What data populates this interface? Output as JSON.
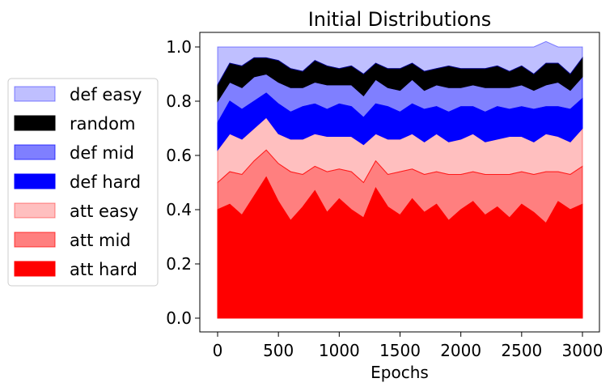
{
  "chart_data": {
    "type": "area",
    "stacked": true,
    "title": "Initial Distributions",
    "xlabel": "Epochs",
    "ylabel": "",
    "xlim": [
      0,
      3000
    ],
    "ylim": [
      0,
      1
    ],
    "xticks": [
      "0",
      "500",
      "1000",
      "1500",
      "2000",
      "2500",
      "3000"
    ],
    "yticks": [
      "0.0",
      "0.2",
      "0.4",
      "0.6",
      "0.8",
      "1.0"
    ],
    "legend_position": "left, outside plot",
    "x": [
      0,
      100,
      200,
      300,
      400,
      500,
      600,
      700,
      800,
      900,
      1000,
      1100,
      1200,
      1300,
      1400,
      1500,
      1600,
      1700,
      1800,
      1900,
      2000,
      2100,
      2200,
      2300,
      2400,
      2500,
      2600,
      2700,
      2800,
      2900,
      3000
    ],
    "series": [
      {
        "name": "att hard",
        "color": "#ff0000",
        "opacity": 1.0,
        "values": [
          0.4,
          0.42,
          0.38,
          0.45,
          0.52,
          0.43,
          0.36,
          0.41,
          0.47,
          0.39,
          0.44,
          0.4,
          0.37,
          0.48,
          0.41,
          0.38,
          0.44,
          0.39,
          0.42,
          0.36,
          0.4,
          0.43,
          0.38,
          0.41,
          0.37,
          0.42,
          0.39,
          0.35,
          0.43,
          0.4,
          0.42
        ]
      },
      {
        "name": "att mid",
        "color": "#ff0000",
        "opacity": 0.5,
        "values": [
          0.1,
          0.12,
          0.15,
          0.13,
          0.1,
          0.14,
          0.18,
          0.12,
          0.09,
          0.15,
          0.11,
          0.14,
          0.13,
          0.1,
          0.12,
          0.16,
          0.11,
          0.14,
          0.12,
          0.17,
          0.13,
          0.11,
          0.15,
          0.12,
          0.16,
          0.12,
          0.14,
          0.19,
          0.11,
          0.13,
          0.14
        ]
      },
      {
        "name": "att easy",
        "color": "#ff0000",
        "opacity": 0.25,
        "values": [
          0.12,
          0.14,
          0.13,
          0.12,
          0.12,
          0.11,
          0.12,
          0.13,
          0.12,
          0.13,
          0.12,
          0.13,
          0.14,
          0.1,
          0.13,
          0.12,
          0.13,
          0.12,
          0.14,
          0.12,
          0.13,
          0.14,
          0.12,
          0.13,
          0.14,
          0.13,
          0.12,
          0.14,
          0.13,
          0.12,
          0.14
        ]
      },
      {
        "name": "def hard",
        "color": "#0000ff",
        "opacity": 1.0,
        "values": [
          0.1,
          0.12,
          0.11,
          0.1,
          0.09,
          0.11,
          0.1,
          0.12,
          0.11,
          0.1,
          0.12,
          0.11,
          0.1,
          0.11,
          0.12,
          0.1,
          0.11,
          0.12,
          0.1,
          0.11,
          0.12,
          0.1,
          0.11,
          0.12,
          0.1,
          0.11,
          0.12,
          0.1,
          0.11,
          0.12,
          0.11
        ]
      },
      {
        "name": "def mid",
        "color": "#0000ff",
        "opacity": 0.5,
        "values": [
          0.08,
          0.07,
          0.08,
          0.09,
          0.07,
          0.08,
          0.09,
          0.07,
          0.08,
          0.09,
          0.07,
          0.08,
          0.08,
          0.09,
          0.07,
          0.08,
          0.09,
          0.07,
          0.08,
          0.09,
          0.07,
          0.08,
          0.09,
          0.07,
          0.08,
          0.08,
          0.07,
          0.08,
          0.09,
          0.07,
          0.08
        ]
      },
      {
        "name": "random",
        "color": "#000000",
        "opacity": 1.0,
        "values": [
          0.06,
          0.07,
          0.08,
          0.07,
          0.06,
          0.08,
          0.07,
          0.06,
          0.08,
          0.07,
          0.06,
          0.07,
          0.08,
          0.06,
          0.07,
          0.08,
          0.06,
          0.07,
          0.06,
          0.08,
          0.07,
          0.06,
          0.07,
          0.08,
          0.06,
          0.07,
          0.06,
          0.08,
          0.07,
          0.06,
          0.07
        ]
      },
      {
        "name": "def easy",
        "color": "#0000ff",
        "opacity": 0.25,
        "values": [
          0.14,
          0.06,
          0.07,
          0.04,
          0.04,
          0.05,
          0.08,
          0.09,
          0.05,
          0.07,
          0.08,
          0.07,
          0.1,
          0.06,
          0.08,
          0.08,
          0.06,
          0.09,
          0.08,
          0.07,
          0.08,
          0.08,
          0.08,
          0.07,
          0.09,
          0.07,
          0.1,
          0.08,
          0.06,
          0.1,
          0.04
        ]
      }
    ]
  }
}
